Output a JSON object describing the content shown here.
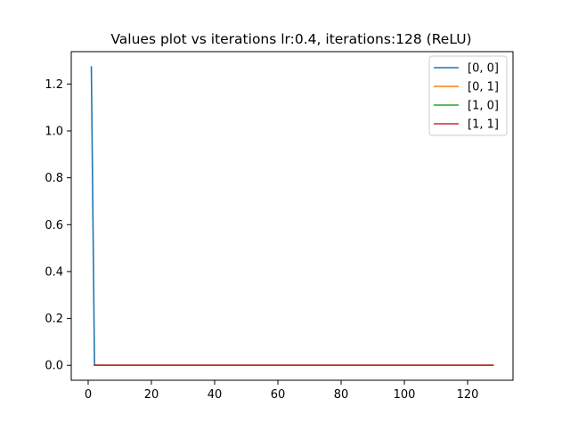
{
  "chart_data": {
    "type": "line",
    "title": "Values plot vs iterations lr:0.4, iterations:128 (ReLU)",
    "xlabel": "",
    "ylabel": "",
    "xlim": [
      -5.35,
      134.35
    ],
    "ylim": [
      -0.0637,
      1.338
    ],
    "xticks": [
      0,
      20,
      40,
      60,
      80,
      100,
      120
    ],
    "yticks": [
      0.0,
      0.2,
      0.4,
      0.6,
      0.8,
      1.0,
      1.2
    ],
    "xtick_labels": [
      "0",
      "20",
      "40",
      "60",
      "80",
      "100",
      "120"
    ],
    "ytick_labels": [
      "0.0",
      "0.2",
      "0.4",
      "0.6",
      "0.8",
      "1.0",
      "1.2"
    ],
    "grid": false,
    "legend_position": "top-right",
    "series": [
      {
        "name": "[0, 0]",
        "color": "#1f77b4",
        "x": [
          1,
          2,
          3,
          128
        ],
        "y": [
          1.273,
          0.003,
          0.0,
          0.0
        ]
      },
      {
        "name": "[0, 1]",
        "color": "#ff7f0e",
        "x": [
          2,
          128
        ],
        "y": [
          0.0,
          0.0
        ]
      },
      {
        "name": "[1, 0]",
        "color": "#2ca02c",
        "x": [
          2,
          128
        ],
        "y": [
          0.0,
          0.0
        ]
      },
      {
        "name": "[1, 1]",
        "color": "#d62728",
        "x": [
          2,
          128
        ],
        "y": [
          0.0,
          0.0
        ]
      }
    ]
  }
}
